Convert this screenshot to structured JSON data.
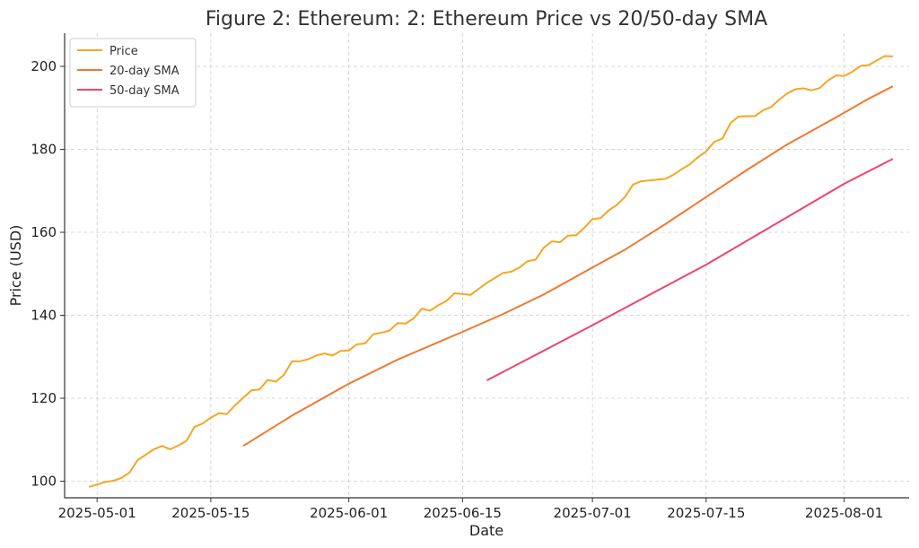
{
  "chart_data": {
    "type": "line",
    "title": "Figure 2: Ethereum: 2: Ethereum Price vs 20/50-day SMA",
    "xlabel": "Date",
    "ylabel": "Price (USD)",
    "xlim": [
      "2025-04-27",
      "2025-08-09"
    ],
    "ylim": [
      96,
      208
    ],
    "grid": true,
    "legend_position": "top-left",
    "x_ticks": [
      "2025-05-01",
      "2025-05-15",
      "2025-06-01",
      "2025-06-15",
      "2025-07-01",
      "2025-07-15",
      "2025-08-01"
    ],
    "y_ticks": [
      100,
      120,
      140,
      160,
      180,
      200
    ],
    "series": [
      {
        "name": "Price",
        "color": "#f5a623",
        "points": [
          [
            "2025-04-30",
            98.6
          ],
          [
            "2025-05-01",
            99.2
          ],
          [
            "2025-05-02",
            99.8
          ],
          [
            "2025-05-03",
            100.1
          ],
          [
            "2025-05-04",
            100.8
          ],
          [
            "2025-05-05",
            102.1
          ],
          [
            "2025-05-06",
            105.1
          ],
          [
            "2025-05-07",
            106.4
          ],
          [
            "2025-05-08",
            107.7
          ],
          [
            "2025-05-09",
            108.5
          ],
          [
            "2025-05-10",
            107.7
          ],
          [
            "2025-05-11",
            108.6
          ],
          [
            "2025-05-12",
            109.7
          ],
          [
            "2025-05-13",
            113.1
          ],
          [
            "2025-05-14",
            113.9
          ],
          [
            "2025-05-15",
            115.3
          ],
          [
            "2025-05-16",
            116.4
          ],
          [
            "2025-05-17",
            116.2
          ],
          [
            "2025-05-18",
            118.3
          ],
          [
            "2025-05-19",
            120.1
          ],
          [
            "2025-05-20",
            121.9
          ],
          [
            "2025-05-21",
            122.1
          ],
          [
            "2025-05-22",
            124.4
          ],
          [
            "2025-05-23",
            124.0
          ],
          [
            "2025-05-24",
            125.6
          ],
          [
            "2025-05-25",
            128.9
          ],
          [
            "2025-05-26",
            128.9
          ],
          [
            "2025-05-27",
            129.4
          ],
          [
            "2025-05-28",
            130.3
          ],
          [
            "2025-05-29",
            130.8
          ],
          [
            "2025-05-30",
            130.3
          ],
          [
            "2025-05-31",
            131.4
          ],
          [
            "2025-06-01",
            131.5
          ],
          [
            "2025-06-02",
            133.0
          ],
          [
            "2025-06-03",
            133.2
          ],
          [
            "2025-06-04",
            135.4
          ],
          [
            "2025-06-05",
            135.8
          ],
          [
            "2025-06-06",
            136.3
          ],
          [
            "2025-06-07",
            138.1
          ],
          [
            "2025-06-08",
            138.0
          ],
          [
            "2025-06-09",
            139.3
          ],
          [
            "2025-06-10",
            141.6
          ],
          [
            "2025-06-11",
            141.1
          ],
          [
            "2025-06-12",
            142.4
          ],
          [
            "2025-06-13",
            143.4
          ],
          [
            "2025-06-14",
            145.3
          ],
          [
            "2025-06-15",
            145.1
          ],
          [
            "2025-06-16",
            144.9
          ],
          [
            "2025-06-17",
            146.4
          ],
          [
            "2025-06-18",
            147.8
          ],
          [
            "2025-06-19",
            149.0
          ],
          [
            "2025-06-20",
            150.2
          ],
          [
            "2025-06-21",
            150.5
          ],
          [
            "2025-06-22",
            151.5
          ],
          [
            "2025-06-23",
            153.0
          ],
          [
            "2025-06-24",
            153.4
          ],
          [
            "2025-06-25",
            156.3
          ],
          [
            "2025-06-26",
            157.8
          ],
          [
            "2025-06-27",
            157.6
          ],
          [
            "2025-06-28",
            159.2
          ],
          [
            "2025-06-29",
            159.3
          ],
          [
            "2025-06-30",
            161.1
          ],
          [
            "2025-07-01",
            163.2
          ],
          [
            "2025-07-02",
            163.4
          ],
          [
            "2025-07-03",
            165.3
          ],
          [
            "2025-07-04",
            166.6
          ],
          [
            "2025-07-05",
            168.5
          ],
          [
            "2025-07-06",
            171.5
          ],
          [
            "2025-07-07",
            172.3
          ],
          [
            "2025-07-08",
            172.5
          ],
          [
            "2025-07-09",
            172.7
          ],
          [
            "2025-07-10",
            172.9
          ],
          [
            "2025-07-11",
            173.9
          ],
          [
            "2025-07-12",
            175.2
          ],
          [
            "2025-07-13",
            176.4
          ],
          [
            "2025-07-14",
            178.1
          ],
          [
            "2025-07-15",
            179.5
          ],
          [
            "2025-07-16",
            181.8
          ],
          [
            "2025-07-17",
            182.6
          ],
          [
            "2025-07-18",
            186.3
          ],
          [
            "2025-07-19",
            187.9
          ],
          [
            "2025-07-20",
            188.0
          ],
          [
            "2025-07-21",
            188.0
          ],
          [
            "2025-07-22",
            189.4
          ],
          [
            "2025-07-23",
            190.2
          ],
          [
            "2025-07-24",
            192.0
          ],
          [
            "2025-07-25",
            193.5
          ],
          [
            "2025-07-26",
            194.5
          ],
          [
            "2025-07-27",
            194.7
          ],
          [
            "2025-07-28",
            194.2
          ],
          [
            "2025-07-29",
            194.8
          ],
          [
            "2025-07-30",
            196.6
          ],
          [
            "2025-07-31",
            197.8
          ],
          [
            "2025-08-01",
            197.7
          ],
          [
            "2025-08-02",
            198.7
          ],
          [
            "2025-08-03",
            200.1
          ],
          [
            "2025-08-04",
            200.3
          ],
          [
            "2025-08-05",
            201.4
          ],
          [
            "2025-08-06",
            202.5
          ],
          [
            "2025-08-07",
            202.4
          ]
        ]
      },
      {
        "name": "20-day SMA",
        "color": "#f07830",
        "points": [
          [
            "2025-05-19",
            108.5
          ],
          [
            "2025-05-25",
            115.8
          ],
          [
            "2025-06-01",
            123.5
          ],
          [
            "2025-06-07",
            129.3
          ],
          [
            "2025-06-15",
            136.0
          ],
          [
            "2025-06-20",
            140.3
          ],
          [
            "2025-06-25",
            145.0
          ],
          [
            "2025-07-01",
            151.5
          ],
          [
            "2025-07-05",
            155.8
          ],
          [
            "2025-07-10",
            162.0
          ],
          [
            "2025-07-15",
            168.5
          ],
          [
            "2025-07-20",
            175.0
          ],
          [
            "2025-07-25",
            181.2
          ],
          [
            "2025-07-31",
            187.7
          ],
          [
            "2025-08-04",
            192.2
          ],
          [
            "2025-08-07",
            195.2
          ]
        ]
      },
      {
        "name": "50-day SMA",
        "color": "#ec4470",
        "points": [
          [
            "2025-06-18",
            124.3
          ],
          [
            "2025-07-01",
            137.6
          ],
          [
            "2025-07-15",
            152.2
          ],
          [
            "2025-08-01",
            171.7
          ],
          [
            "2025-08-07",
            177.7
          ]
        ]
      }
    ]
  }
}
